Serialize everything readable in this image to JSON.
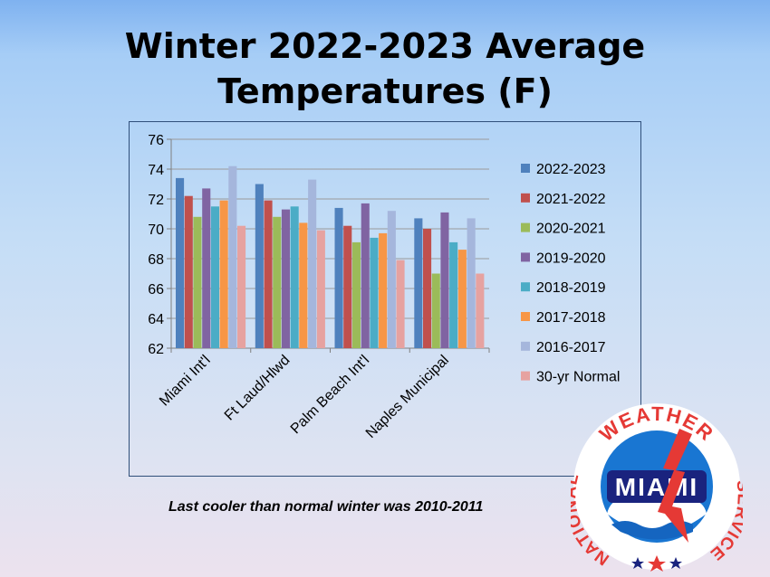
{
  "slide": {
    "title_line1": "Winter 2022-2023 Average",
    "title_line2": "Temperatures (F)",
    "footnote": "Last cooler than normal winter was 2010-2011"
  },
  "logo": {
    "arc_text_top": "WEATHER",
    "arc_text_left": "NATIONAL",
    "arc_text_right": "SERVICE",
    "center_text": "MIAMI",
    "colors": {
      "outer": "#ffffff",
      "blue": "#1565c0",
      "red": "#e53935",
      "navy": "#1a237e"
    }
  },
  "chart_data": {
    "type": "bar",
    "categories": [
      "Miami Int'l",
      "Ft Laud/Hlwd",
      "Palm Beach Int'l",
      "Naples Municipal"
    ],
    "ylim": [
      62,
      76
    ],
    "yticks": [
      62,
      64,
      66,
      68,
      70,
      72,
      74,
      76
    ],
    "grid": true,
    "legend_position": "right",
    "series": [
      {
        "name": "2022-2023",
        "color": "#4f81bd",
        "values": [
          73.4,
          73.0,
          71.4,
          70.7
        ]
      },
      {
        "name": "2021-2022",
        "color": "#c0504d",
        "values": [
          72.2,
          71.9,
          70.2,
          70.0
        ]
      },
      {
        "name": "2020-2021",
        "color": "#9bbb59",
        "values": [
          70.8,
          70.8,
          69.1,
          67.0
        ]
      },
      {
        "name": "2019-2020",
        "color": "#8064a2",
        "values": [
          72.7,
          71.3,
          71.7,
          71.1
        ]
      },
      {
        "name": "2018-2019",
        "color": "#4bacc6",
        "values": [
          71.5,
          71.5,
          69.4,
          69.1
        ]
      },
      {
        "name": "2017-2018",
        "color": "#f79646",
        "values": [
          71.9,
          70.4,
          69.7,
          68.6
        ]
      },
      {
        "name": "2016-2017",
        "color": "#a5b6dc",
        "values": [
          74.2,
          73.3,
          71.2,
          70.7
        ]
      },
      {
        "name": "30-yr Normal",
        "color": "#e6a2a0",
        "values": [
          70.2,
          69.9,
          67.9,
          67.0
        ]
      }
    ]
  }
}
